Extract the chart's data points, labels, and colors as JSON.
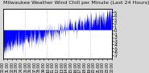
{
  "title": "Milwaukee Weather Wind Chill per Minute (Last 24 Hours)",
  "bg_color": "#d8d8d8",
  "plot_bg_color": "#ffffff",
  "line_color": "#0000ff",
  "n_points": 1440,
  "y_min": -8,
  "y_max": 6,
  "y_ticks": [
    5,
    4,
    3,
    2,
    1,
    0,
    -1,
    -2,
    -3,
    -4,
    -5,
    -6,
    -7
  ],
  "title_fontsize": 4.5,
  "tick_fontsize": 3.5,
  "grid_color": "#bbbbbb",
  "n_vgrid": 5,
  "n_xticks": 25,
  "seed": 42
}
